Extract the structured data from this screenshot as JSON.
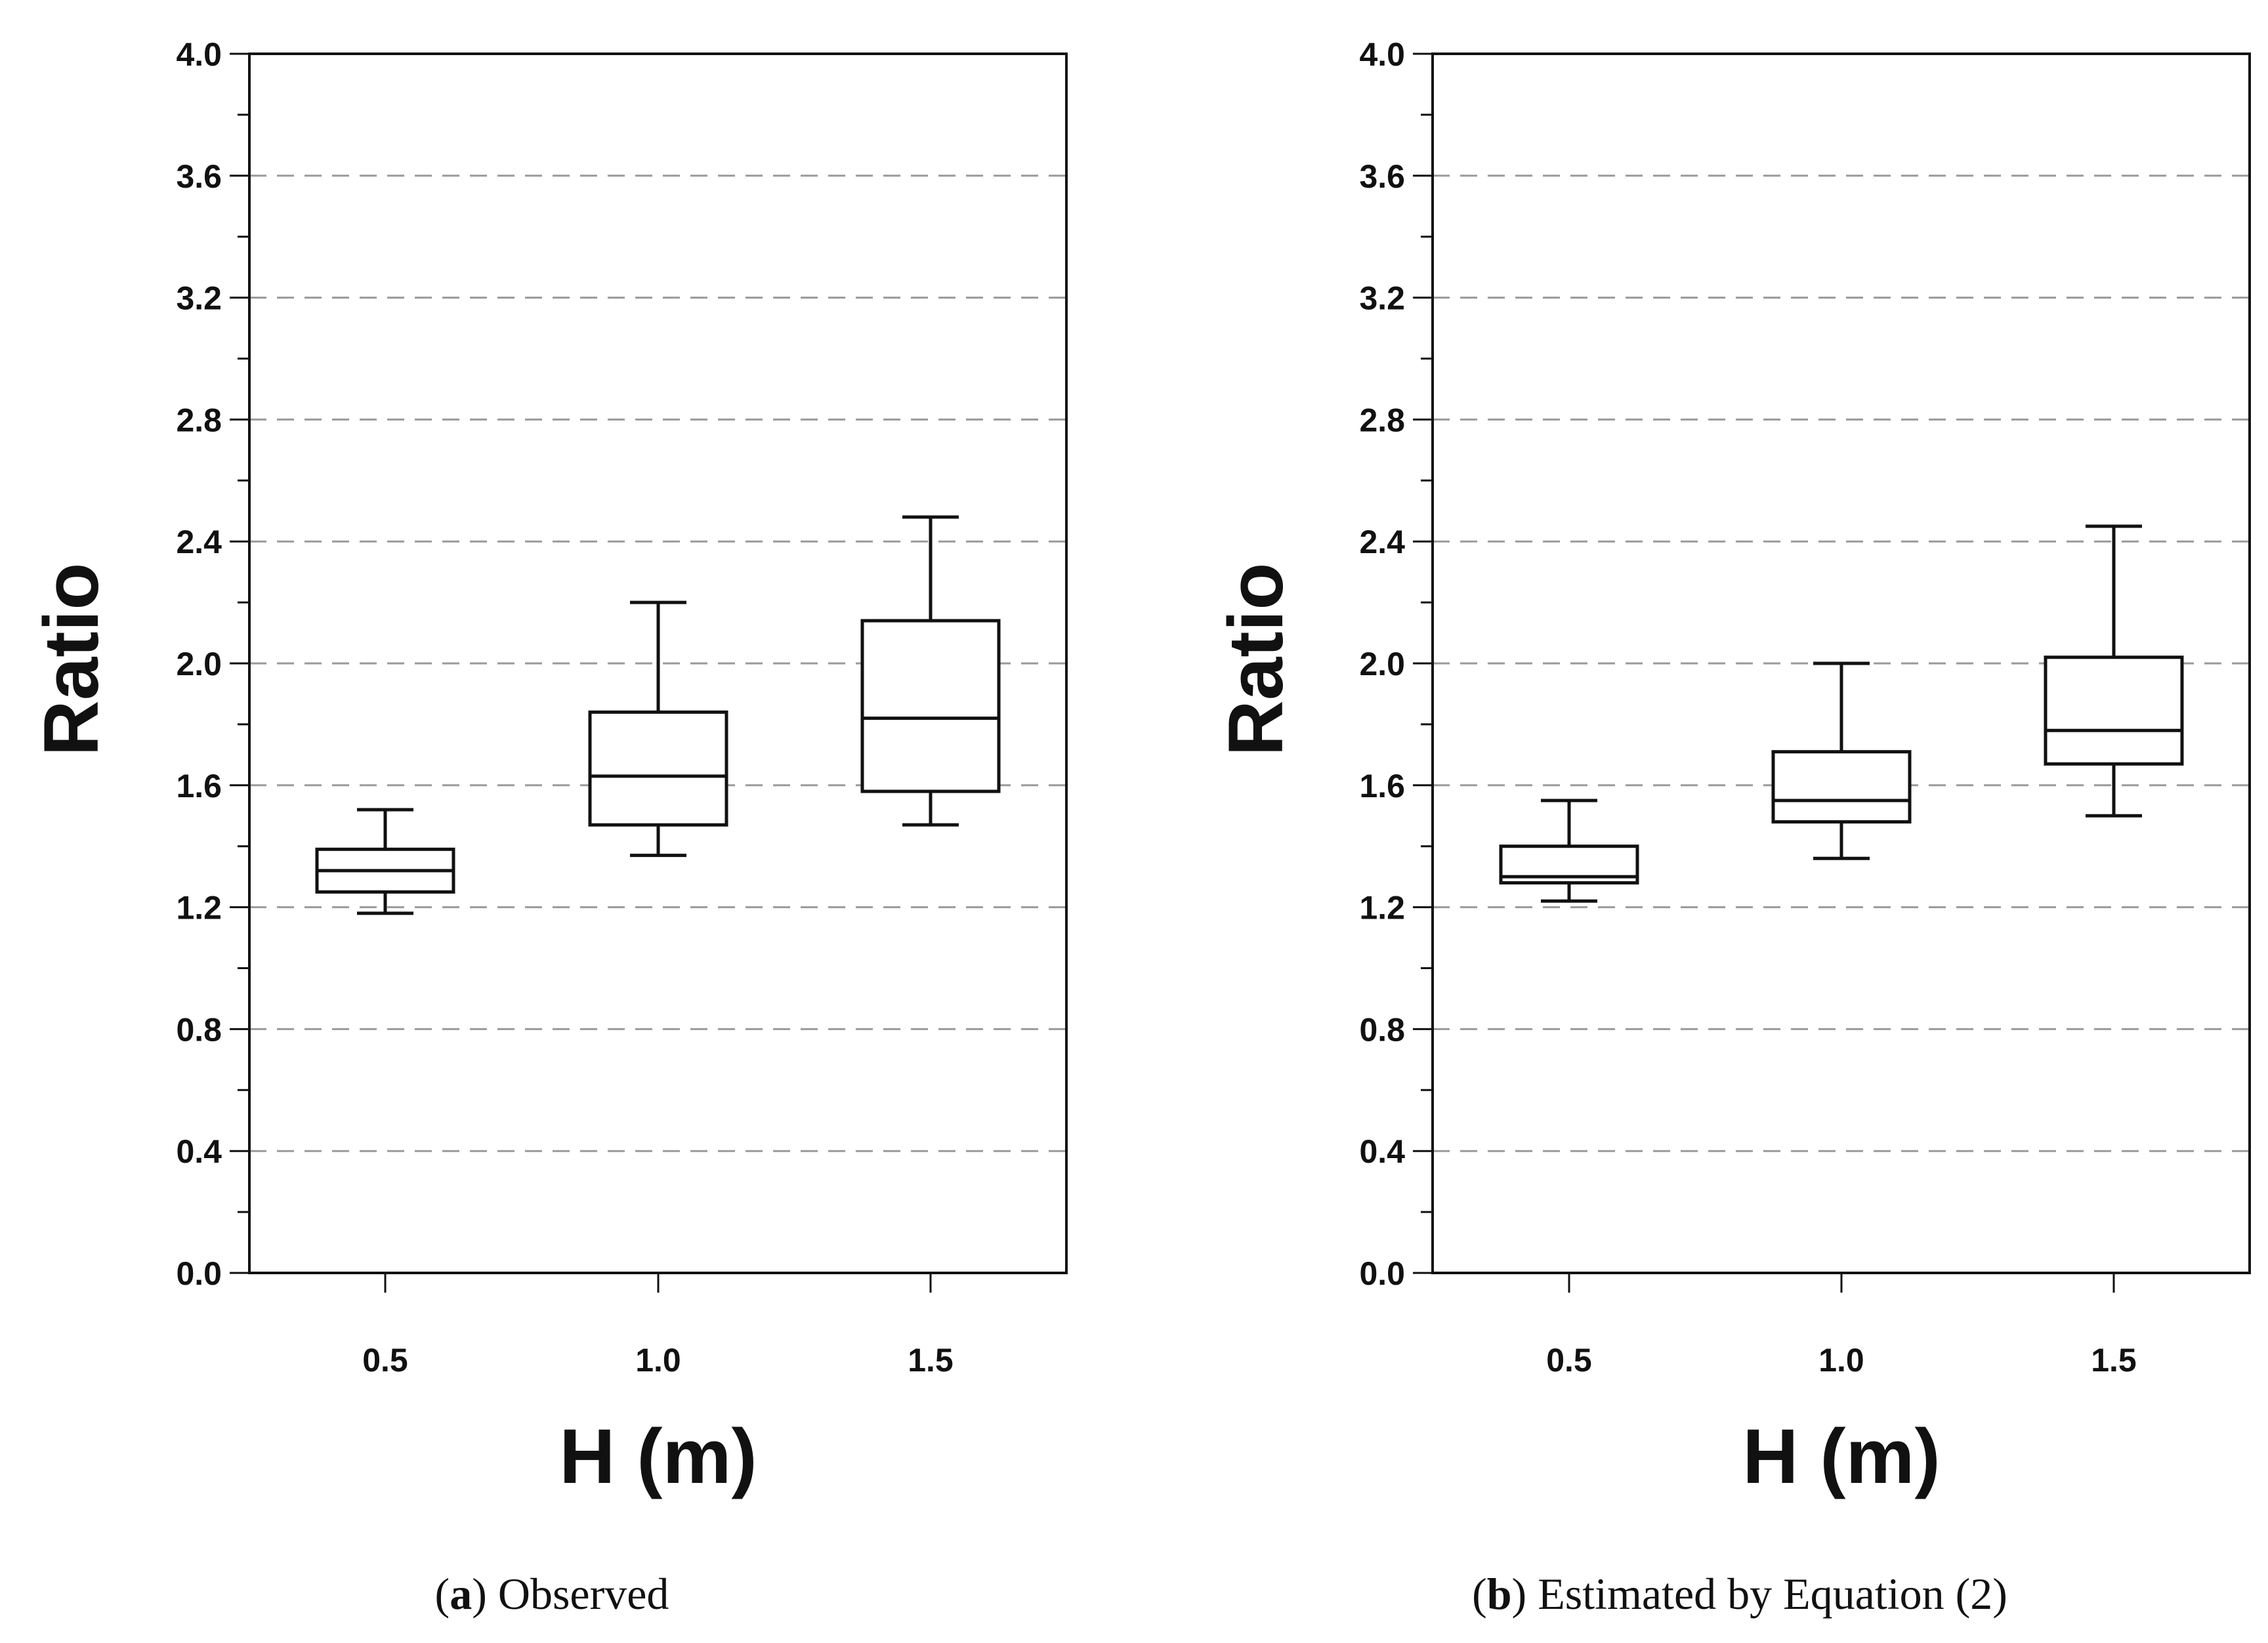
{
  "chart_data": [
    {
      "type": "box",
      "panel_letter": "a",
      "caption": "Observed",
      "xlabel": "H (m)",
      "ylabel": "Ratio",
      "ylim": [
        0.0,
        4.0
      ],
      "yticks": [
        "0.0",
        "0.4",
        "0.8",
        "1.2",
        "1.6",
        "2.0",
        "2.4",
        "2.8",
        "3.2",
        "3.6",
        "4.0"
      ],
      "grid": true,
      "categories": [
        "0.5",
        "1.0",
        "1.5"
      ],
      "boxes": [
        {
          "category": "0.5",
          "min": 1.18,
          "q1": 1.25,
          "median": 1.32,
          "q3": 1.39,
          "max": 1.52
        },
        {
          "category": "1.0",
          "min": 1.37,
          "q1": 1.47,
          "median": 1.63,
          "q3": 1.84,
          "max": 2.2
        },
        {
          "category": "1.5",
          "min": 1.47,
          "q1": 1.58,
          "median": 1.82,
          "q3": 2.14,
          "max": 2.48
        }
      ]
    },
    {
      "type": "box",
      "panel_letter": "b",
      "caption": "Estimated by Equation (2)",
      "xlabel": "H (m)",
      "ylabel": "Ratio",
      "ylim": [
        0.0,
        4.0
      ],
      "yticks": [
        "0.0",
        "0.4",
        "0.8",
        "1.2",
        "1.6",
        "2.0",
        "2.4",
        "2.8",
        "3.2",
        "3.6",
        "4.0"
      ],
      "grid": true,
      "categories": [
        "0.5",
        "1.0",
        "1.5"
      ],
      "boxes": [
        {
          "category": "0.5",
          "min": 1.22,
          "q1": 1.28,
          "median": 1.3,
          "q3": 1.4,
          "max": 1.55
        },
        {
          "category": "1.0",
          "min": 1.36,
          "q1": 1.48,
          "median": 1.55,
          "q3": 1.71,
          "max": 2.0
        },
        {
          "category": "1.5",
          "min": 1.5,
          "q1": 1.67,
          "median": 1.78,
          "q3": 2.02,
          "max": 2.45
        }
      ]
    }
  ]
}
